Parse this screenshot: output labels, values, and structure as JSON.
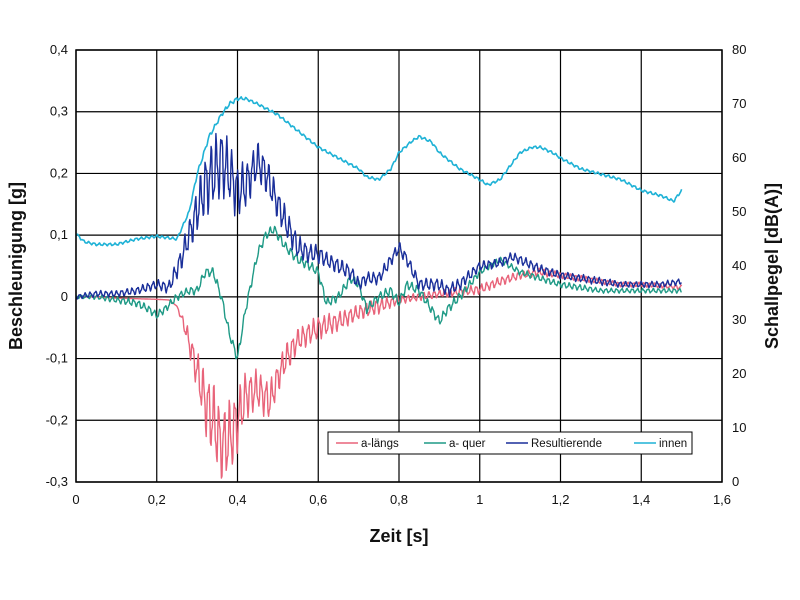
{
  "chart_data": {
    "type": "line",
    "title": "",
    "xlabel": "Zeit [s]",
    "ylabel": "Beschleunigung [g]",
    "y2label": "Schallpegel [dB(A)]",
    "xlim": [
      0,
      1.6
    ],
    "ylim": [
      -0.3,
      0.4
    ],
    "y2lim": [
      0,
      80
    ],
    "xticks": [
      "0",
      "0,2",
      "0,4",
      "0,6",
      "0,8",
      "1",
      "1,2",
      "1,4",
      "1,6"
    ],
    "yticks": [
      "-0,3",
      "-0,2",
      "-0,1",
      "0",
      "0,1",
      "0,2",
      "0,3",
      "0,4"
    ],
    "y2ticks": [
      "0",
      "10",
      "20",
      "30",
      "40",
      "50",
      "60",
      "70",
      "80"
    ],
    "grid": true,
    "legend_position": "bottom-right",
    "series": [
      {
        "name": "a-längs",
        "axis": "left",
        "color": "#e8647a",
        "x": [
          0,
          0.05,
          0.1,
          0.15,
          0.2,
          0.23,
          0.25,
          0.27,
          0.3,
          0.32,
          0.34,
          0.36,
          0.38,
          0.4,
          0.42,
          0.45,
          0.48,
          0.5,
          0.52,
          0.55,
          0.6,
          0.65,
          0.7,
          0.75,
          0.8,
          0.85,
          0.9,
          0.95,
          1.0,
          1.05,
          1.1,
          1.15,
          1.2,
          1.25,
          1.3,
          1.35,
          1.4,
          1.45,
          1.5
        ],
        "y": [
          0,
          0,
          -0.002,
          -0.003,
          -0.004,
          -0.005,
          -0.015,
          -0.05,
          -0.12,
          -0.17,
          -0.2,
          -0.24,
          -0.23,
          -0.2,
          -0.16,
          -0.15,
          -0.17,
          -0.13,
          -0.1,
          -0.07,
          -0.05,
          -0.04,
          -0.025,
          -0.015,
          -0.005,
          0,
          0.005,
          0.008,
          0.012,
          0.025,
          0.035,
          0.04,
          0.035,
          0.03,
          0.025,
          0.02,
          0.02,
          0.018,
          0.015
        ],
        "osc_amp": [
          0,
          0,
          0,
          0,
          0,
          0,
          0,
          0.01,
          0.025,
          0.04,
          0.05,
          0.045,
          0.05,
          0.04,
          0.03,
          0.025,
          0.025,
          0.02,
          0.02,
          0.015,
          0.015,
          0.012,
          0.01,
          0.01,
          0.005,
          0.005,
          0.005,
          0.006,
          0.006,
          0.006,
          0.005,
          0.005,
          0.004,
          0.004,
          0.003,
          0.003,
          0.003,
          0.003,
          0.003
        ]
      },
      {
        "name": "a- quer",
        "axis": "left",
        "color": "#1f9a86",
        "x": [
          0,
          0.05,
          0.1,
          0.15,
          0.18,
          0.2,
          0.22,
          0.25,
          0.28,
          0.3,
          0.32,
          0.34,
          0.36,
          0.38,
          0.4,
          0.42,
          0.45,
          0.47,
          0.49,
          0.5,
          0.52,
          0.55,
          0.58,
          0.6,
          0.62,
          0.65,
          0.68,
          0.7,
          0.72,
          0.75,
          0.78,
          0.8,
          0.82,
          0.85,
          0.88,
          0.9,
          0.92,
          0.95,
          1.0,
          1.05,
          1.1,
          1.15,
          1.2,
          1.25,
          1.3,
          1.35,
          1.4,
          1.45,
          1.5
        ],
        "y": [
          0,
          0,
          -0.005,
          -0.01,
          -0.02,
          -0.03,
          -0.02,
          0,
          0.01,
          0.01,
          0.04,
          0.04,
          0,
          -0.06,
          -0.1,
          -0.02,
          0.07,
          0.1,
          0.11,
          0.1,
          0.08,
          0.06,
          0.05,
          0.04,
          -0.01,
          0.0,
          0.03,
          0.02,
          -0.02,
          0.0,
          0.01,
          -0.01,
          0.02,
          0.01,
          -0.02,
          -0.04,
          -0.02,
          0,
          0.04,
          0.06,
          0.04,
          0.03,
          0.02,
          0.015,
          0.01,
          0.01,
          0.01,
          0.01,
          0.01
        ],
        "osc_amp": [
          0.002,
          0.003,
          0.004,
          0.005,
          0.005,
          0.005,
          0.005,
          0.005,
          0.005,
          0.006,
          0.006,
          0.006,
          0.006,
          0.006,
          0.006,
          0.006,
          0.006,
          0.006,
          0.006,
          0.006,
          0.006,
          0.006,
          0.006,
          0.006,
          0.006,
          0.006,
          0.006,
          0.006,
          0.006,
          0.006,
          0.006,
          0.006,
          0.006,
          0.006,
          0.006,
          0.006,
          0.006,
          0.006,
          0.004,
          0.004,
          0.004,
          0.004,
          0.004,
          0.004,
          0.003,
          0.003,
          0.003,
          0.003,
          0.003
        ]
      },
      {
        "name": "Resultierende",
        "axis": "left",
        "color": "#1a2f9a",
        "x": [
          0,
          0.05,
          0.1,
          0.15,
          0.2,
          0.23,
          0.26,
          0.28,
          0.3,
          0.32,
          0.34,
          0.36,
          0.38,
          0.4,
          0.42,
          0.45,
          0.47,
          0.5,
          0.52,
          0.55,
          0.58,
          0.6,
          0.62,
          0.65,
          0.68,
          0.7,
          0.72,
          0.75,
          0.78,
          0.8,
          0.82,
          0.85,
          0.88,
          0.9,
          0.92,
          0.95,
          1.0,
          1.05,
          1.08,
          1.1,
          1.15,
          1.2,
          1.25,
          1.3,
          1.35,
          1.4,
          1.45,
          1.5
        ],
        "y": [
          0,
          0.005,
          0.005,
          0.01,
          0.02,
          0.015,
          0.06,
          0.1,
          0.14,
          0.18,
          0.2,
          0.22,
          0.2,
          0.17,
          0.18,
          0.22,
          0.2,
          0.15,
          0.12,
          0.08,
          0.07,
          0.07,
          0.06,
          0.05,
          0.04,
          0.02,
          0.03,
          0.03,
          0.06,
          0.08,
          0.06,
          0.02,
          0.02,
          0.02,
          0.01,
          0.02,
          0.05,
          0.055,
          0.065,
          0.06,
          0.045,
          0.035,
          0.03,
          0.025,
          0.02,
          0.02,
          0.02,
          0.025
        ],
        "osc_amp": [
          0.003,
          0.004,
          0.004,
          0.005,
          0.006,
          0.008,
          0.015,
          0.02,
          0.03,
          0.04,
          0.045,
          0.045,
          0.04,
          0.035,
          0.03,
          0.025,
          0.025,
          0.02,
          0.02,
          0.015,
          0.012,
          0.012,
          0.01,
          0.01,
          0.01,
          0.008,
          0.008,
          0.008,
          0.008,
          0.008,
          0.008,
          0.008,
          0.008,
          0.008,
          0.008,
          0.008,
          0.006,
          0.006,
          0.006,
          0.006,
          0.006,
          0.005,
          0.005,
          0.005,
          0.004,
          0.004,
          0.004,
          0.004
        ]
      },
      {
        "name": "innen",
        "axis": "right",
        "color": "#1fb2d6",
        "x": [
          0,
          0.02,
          0.05,
          0.1,
          0.15,
          0.2,
          0.25,
          0.28,
          0.3,
          0.33,
          0.36,
          0.38,
          0.4,
          0.42,
          0.45,
          0.5,
          0.55,
          0.6,
          0.65,
          0.7,
          0.72,
          0.75,
          0.78,
          0.8,
          0.83,
          0.85,
          0.88,
          0.9,
          0.95,
          1.0,
          1.02,
          1.05,
          1.08,
          1.1,
          1.13,
          1.15,
          1.18,
          1.2,
          1.25,
          1.3,
          1.35,
          1.4,
          1.45,
          1.48,
          1.5
        ],
        "y": [
          46,
          44.5,
          44,
          44,
          45,
          45.5,
          45,
          50,
          57,
          64,
          68,
          70,
          71,
          71,
          70,
          68,
          65,
          62,
          60,
          58,
          56.5,
          56,
          58,
          61,
          63,
          64,
          63,
          61,
          58,
          56,
          55,
          56,
          59,
          61,
          62,
          62,
          61,
          60,
          58,
          57,
          56,
          54,
          53,
          52,
          54
        ],
        "osc_amp": [
          0.2,
          0.2,
          0.2,
          0.2,
          0.2,
          0.2,
          0.2,
          0.2,
          0.3,
          0.3,
          0.3,
          0.3,
          0.3,
          0.2,
          0.2,
          0.2,
          0.2,
          0.2,
          0.2,
          0.2,
          0.2,
          0.2,
          0.2,
          0.2,
          0.2,
          0.2,
          0.2,
          0.2,
          0.2,
          0.2,
          0.2,
          0.2,
          0.2,
          0.2,
          0.2,
          0.2,
          0.2,
          0.2,
          0.2,
          0.2,
          0.2,
          0.2,
          0.2,
          0.2,
          0.2
        ]
      }
    ]
  }
}
